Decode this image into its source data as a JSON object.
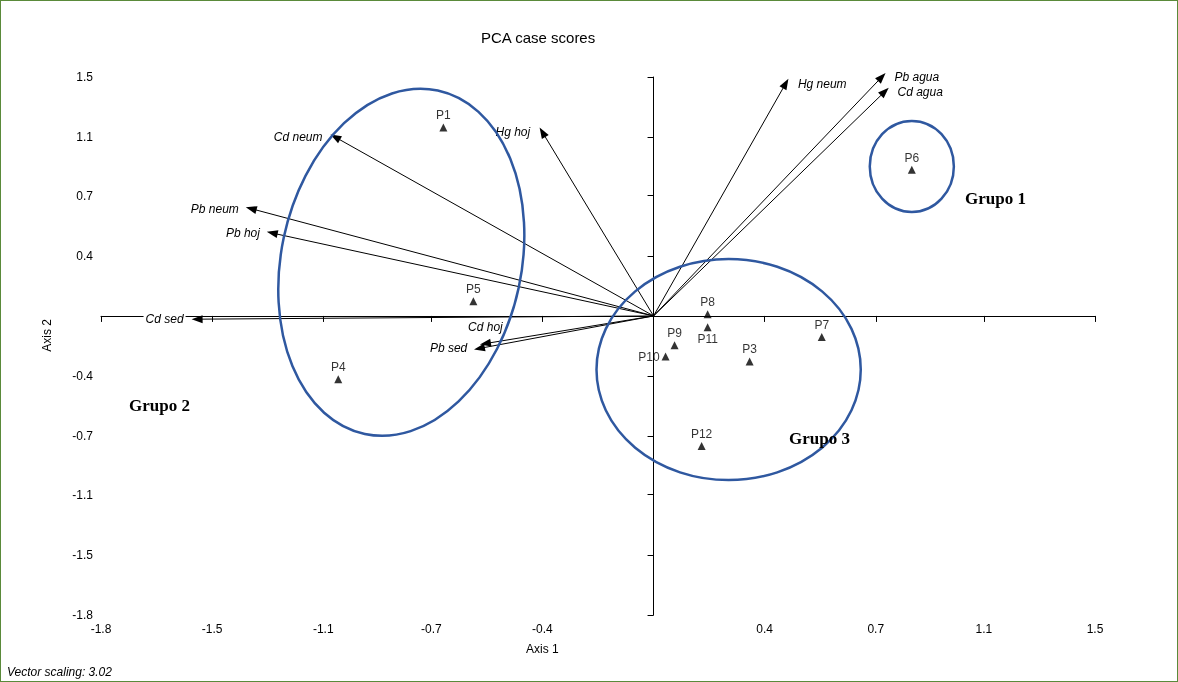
{
  "chart_data": {
    "type": "scatter",
    "title": "PCA case scores",
    "xlabel": "Axis 1",
    "ylabel": "Axis 2",
    "annotations": [
      "Vector scaling: 3.02",
      "Grupo 1",
      "Grupo 2",
      "Grupo 3"
    ],
    "xlim": [
      -1.84,
      1.47
    ],
    "ylim": [
      -1.84,
      1.47
    ],
    "xticks": [
      {
        "value": -1.84,
        "label": "-1.8"
      },
      {
        "value": -1.47,
        "label": "-1.5"
      },
      {
        "value": -1.1,
        "label": "-1.1"
      },
      {
        "value": -0.74,
        "label": "-0.7"
      },
      {
        "value": -0.37,
        "label": "-0.4"
      },
      {
        "value": 0.37,
        "label": "0.4"
      },
      {
        "value": 0.74,
        "label": "0.7"
      },
      {
        "value": 1.1,
        "label": "1.1"
      },
      {
        "value": 1.47,
        "label": "1.5"
      }
    ],
    "yticks": [
      {
        "value": -1.84,
        "label": "-1.8"
      },
      {
        "value": -1.47,
        "label": "-1.5"
      },
      {
        "value": -1.1,
        "label": "-1.1"
      },
      {
        "value": -0.74,
        "label": "-0.7"
      },
      {
        "value": -0.37,
        "label": "-0.4"
      },
      {
        "value": 0.37,
        "label": "0.4"
      },
      {
        "value": 0.74,
        "label": "0.7"
      },
      {
        "value": 1.1,
        "label": "1.1"
      },
      {
        "value": 1.47,
        "label": "1.5"
      }
    ],
    "grid": false,
    "legend": false,
    "marker": "triangle",
    "series": [
      {
        "name": "P1",
        "color": "#000000",
        "x": [
          -0.7
        ],
        "values": [
          1.16
        ]
      },
      {
        "name": "P3",
        "color": "#000000",
        "x": [
          0.32
        ],
        "values": [
          -0.28
        ]
      },
      {
        "name": "P4",
        "color": "#000000",
        "x": [
          -1.05
        ],
        "values": [
          -0.39
        ]
      },
      {
        "name": "P5",
        "color": "#000000",
        "x": [
          -0.6
        ],
        "values": [
          0.09
        ]
      },
      {
        "name": "P6",
        "color": "#000000",
        "x": [
          0.86
        ],
        "values": [
          0.9
        ]
      },
      {
        "name": "P7",
        "color": "#000000",
        "x": [
          0.56
        ],
        "values": [
          -0.13
        ]
      },
      {
        "name": "P8",
        "color": "#000000",
        "x": [
          0.18
        ],
        "values": [
          0.01
        ]
      },
      {
        "name": "P9",
        "color": "#000000",
        "x": [
          0.07
        ],
        "values": [
          -0.18
        ]
      },
      {
        "name": "P10",
        "color": "#000000",
        "x": [
          0.04
        ],
        "values": [
          -0.25
        ]
      },
      {
        "name": "P11",
        "color": "#000000",
        "x": [
          0.18
        ],
        "values": [
          -0.07
        ]
      },
      {
        "name": "P12",
        "color": "#000000",
        "x": [
          0.16
        ],
        "values": [
          -0.8
        ]
      },
      {
        "name": "Hg neum",
        "type": "line",
        "color": "#000000",
        "x": [
          0,
          0.44
        ],
        "values": [
          0,
          1.43
        ]
      },
      {
        "name": "Pb agua",
        "type": "line",
        "color": "#000000",
        "x": [
          0,
          0.76
        ],
        "values": [
          0,
          1.47
        ]
      },
      {
        "name": "Cd agua",
        "type": "line",
        "color": "#000000",
        "x": [
          0,
          0.77
        ],
        "values": [
          0,
          1.38
        ]
      },
      {
        "name": "Hg hoj",
        "type": "line",
        "color": "#000000",
        "x": [
          0,
          -0.37
        ],
        "values": [
          0,
          1.13
        ]
      },
      {
        "name": "Cd neum",
        "type": "line",
        "color": "#000000",
        "x": [
          0,
          -1.06
        ],
        "values": [
          0,
          1.1
        ]
      },
      {
        "name": "Pb neum",
        "type": "line",
        "color": "#000000",
        "x": [
          0,
          -1.34
        ],
        "values": [
          0,
          0.66
        ]
      },
      {
        "name": "Pb hoj",
        "type": "line",
        "color": "#000000",
        "x": [
          0,
          -1.27
        ],
        "values": [
          0,
          0.51
        ]
      },
      {
        "name": "Cd sed",
        "type": "line",
        "color": "#000000",
        "x": [
          0,
          -1.52
        ],
        "values": [
          0,
          -0.02
        ]
      },
      {
        "name": "Pb sed",
        "type": "line",
        "color": "#000000",
        "x": [
          0,
          -0.58
        ],
        "values": [
          0,
          -0.2
        ]
      },
      {
        "name": "Cd hoj",
        "type": "line",
        "color": "#000000",
        "x": [
          0,
          -0.56
        ],
        "values": [
          0,
          -0.17
        ]
      }
    ]
  }
}
